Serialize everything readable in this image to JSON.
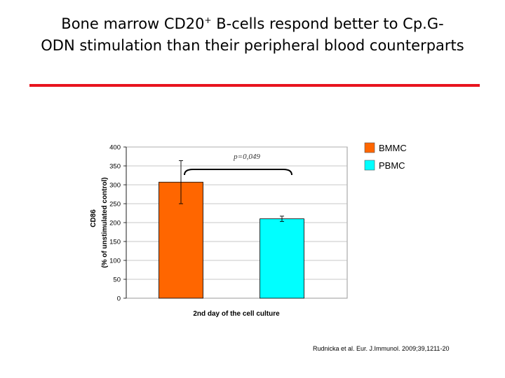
{
  "title": {
    "part1": "Bone marrow CD20",
    "superscript": "+",
    "part2": " B-cells respond better to Cp.G-",
    "line2": "ODN stimulation than their peripheral blood counterparts"
  },
  "citation": "Rudnicka et al. Eur. J.Immunol. 2009;39,1211-20",
  "colors": {
    "accent_rule": "#e8141e",
    "bmmc": "#ff6600",
    "pbmc": "#00ffff"
  },
  "chart_data": {
    "type": "bar",
    "categories": [
      "2nd day of the cell culture"
    ],
    "xlabel": "2nd day of the cell culture",
    "ylabel_line1": "CD86",
    "ylabel_line2": "(% of unstimulated control)",
    "ylim": [
      0,
      400
    ],
    "yticks": [
      0,
      50,
      100,
      150,
      200,
      250,
      300,
      350,
      400
    ],
    "grid": true,
    "legend_position": "top-right",
    "series": [
      {
        "name": "BMMC",
        "values": [
          307
        ],
        "error": [
          57
        ],
        "color": "#ff6600"
      },
      {
        "name": "PBMC",
        "values": [
          210
        ],
        "error": [
          7
        ],
        "color": "#00ffff"
      }
    ],
    "annotation": "p=0,049"
  }
}
